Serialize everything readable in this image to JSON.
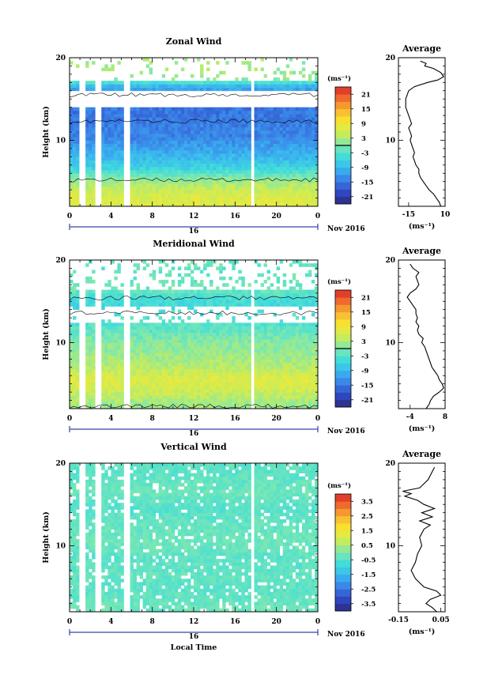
{
  "figure": {
    "x_axis_label": "Local Time",
    "date_label": "Nov 2016",
    "day_label": "16",
    "average_unit": "(ms⁻¹)",
    "colorbar_unit": "(ms⁻¹)"
  },
  "chart_data": [
    {
      "type": "heatmap",
      "title": "Zonal Wind",
      "ylabel": "Height (km)",
      "xlabel": "Local Time",
      "x_ticks": [
        "0",
        "4",
        "8",
        "12",
        "16",
        "20",
        "0"
      ],
      "x_range_hours": [
        0,
        24
      ],
      "y_ticks": [
        "20",
        "10"
      ],
      "ylim": [
        2,
        20
      ],
      "colorbar": {
        "unit": "(ms⁻¹)",
        "ticks": [
          "21",
          "15",
          "9",
          "3",
          "-3",
          "-9",
          "-15",
          "-21"
        ],
        "range": [
          -24,
          24
        ],
        "zero_marker": 0
      },
      "data_gaps_hours": [
        [
          1.0,
          1.6
        ],
        [
          2.4,
          3.2
        ],
        [
          5.2,
          5.8
        ],
        [
          17.5,
          17.9
        ]
      ],
      "profile_rows": [
        {
          "h": 2.5,
          "v": 7
        },
        {
          "h": 3.5,
          "v": 6
        },
        {
          "h": 4.5,
          "v": 4
        },
        {
          "h": 5.5,
          "v": 0
        },
        {
          "h": 6.5,
          "v": -5
        },
        {
          "h": 7.5,
          "v": -8
        },
        {
          "h": 8.5,
          "v": -10
        },
        {
          "h": 9.5,
          "v": -12
        },
        {
          "h": 10.5,
          "v": -14
        },
        {
          "h": 11.5,
          "v": -14
        },
        {
          "h": 12.5,
          "v": -15
        },
        {
          "h": 14.5,
          "v": -15
        },
        {
          "h": 15.5,
          "v": -13
        },
        {
          "h": 16.5,
          "v": -10
        },
        {
          "h": 17.5,
          "v": 2
        }
      ],
      "average": {
        "title": "Average",
        "unit": "(ms⁻¹)",
        "x_ticks": [
          "-15",
          "10"
        ],
        "xlim": [
          -22,
          10
        ],
        "y_ticks": [
          "20",
          "10"
        ],
        "ylim": [
          2,
          20
        ],
        "profile": [
          {
            "h": 2.0,
            "v": 7
          },
          {
            "h": 2.5,
            "v": 6
          },
          {
            "h": 3.0,
            "v": 4
          },
          {
            "h": 3.5,
            "v": 2
          },
          {
            "h": 4.0,
            "v": -1
          },
          {
            "h": 4.5,
            "v": -3
          },
          {
            "h": 5.0,
            "v": -5
          },
          {
            "h": 5.5,
            "v": -7
          },
          {
            "h": 6.0,
            "v": -8
          },
          {
            "h": 6.5,
            "v": -8
          },
          {
            "h": 7.0,
            "v": -10
          },
          {
            "h": 7.5,
            "v": -11
          },
          {
            "h": 8.0,
            "v": -12
          },
          {
            "h": 8.5,
            "v": -11
          },
          {
            "h": 9.0,
            "v": -12
          },
          {
            "h": 9.5,
            "v": -13
          },
          {
            "h": 10.0,
            "v": -14
          },
          {
            "h": 10.5,
            "v": -13
          },
          {
            "h": 11.0,
            "v": -14
          },
          {
            "h": 11.5,
            "v": -15
          },
          {
            "h": 12.0,
            "v": -13
          },
          {
            "h": 12.5,
            "v": -14
          },
          {
            "h": 13.0,
            "v": -15
          },
          {
            "h": 14.0,
            "v": -17
          },
          {
            "h": 15.0,
            "v": -17
          },
          {
            "h": 16.0,
            "v": -15
          },
          {
            "h": 16.5,
            "v": -11
          },
          {
            "h": 17.0,
            "v": -2
          },
          {
            "h": 17.3,
            "v": 5
          },
          {
            "h": 17.7,
            "v": 9
          },
          {
            "h": 18.2,
            "v": 7
          },
          {
            "h": 18.7,
            "v": 2
          },
          {
            "h": 19.0,
            "v": -4
          },
          {
            "h": 19.3,
            "v": -3
          },
          {
            "h": 19.6,
            "v": -7
          }
        ]
      }
    },
    {
      "type": "heatmap",
      "title": "Meridional Wind",
      "ylabel": "Height (km)",
      "xlabel": "Local Time",
      "x_ticks": [
        "0",
        "4",
        "8",
        "12",
        "16",
        "20",
        "0"
      ],
      "x_range_hours": [
        0,
        24
      ],
      "y_ticks": [
        "20",
        "10"
      ],
      "ylim": [
        2,
        20
      ],
      "colorbar": {
        "unit": "(ms⁻¹)",
        "ticks": [
          "21",
          "15",
          "9",
          "3",
          "-3",
          "-9",
          "-15",
          "-21"
        ],
        "range": [
          -24,
          24
        ],
        "zero_marker": 0
      },
      "data_gaps_hours": [
        [
          1.0,
          1.6
        ],
        [
          2.4,
          3.2
        ],
        [
          5.2,
          5.8
        ],
        [
          17.5,
          17.9
        ]
      ],
      "profile_rows": [
        {
          "h": 2.5,
          "v": 2
        },
        {
          "h": 3.5,
          "v": 4
        },
        {
          "h": 4.5,
          "v": 6
        },
        {
          "h": 5.5,
          "v": 7
        },
        {
          "h": 6.5,
          "v": 5
        },
        {
          "h": 7.5,
          "v": 3
        },
        {
          "h": 8.5,
          "v": 2
        },
        {
          "h": 9.5,
          "v": 1
        },
        {
          "h": 10.5,
          "v": 0
        },
        {
          "h": 11.5,
          "v": -2
        },
        {
          "h": 14.5,
          "v": -5
        },
        {
          "h": 15.5,
          "v": -4
        },
        {
          "h": 16.5,
          "v": -1
        },
        {
          "h": 18.5,
          "v": -2
        }
      ],
      "average": {
        "title": "Average",
        "unit": "(ms⁻¹)",
        "x_ticks": [
          "-4",
          "8"
        ],
        "xlim": [
          -8,
          8
        ],
        "y_ticks": [
          "20",
          "10"
        ],
        "ylim": [
          2,
          20
        ],
        "profile": [
          {
            "h": 2.0,
            "v": 1.5
          },
          {
            "h": 2.5,
            "v": 2.5
          },
          {
            "h": 3.0,
            "v": 3
          },
          {
            "h": 3.5,
            "v": 4
          },
          {
            "h": 4.0,
            "v": 6
          },
          {
            "h": 4.5,
            "v": 7.5
          },
          {
            "h": 5.0,
            "v": 7
          },
          {
            "h": 5.5,
            "v": 6
          },
          {
            "h": 6.0,
            "v": 5.5
          },
          {
            "h": 6.5,
            "v": 4.5
          },
          {
            "h": 7.0,
            "v": 3.5
          },
          {
            "h": 7.5,
            "v": 3
          },
          {
            "h": 8.0,
            "v": 2.5
          },
          {
            "h": 8.5,
            "v": 2
          },
          {
            "h": 9.0,
            "v": 1.5
          },
          {
            "h": 9.5,
            "v": 1
          },
          {
            "h": 10.0,
            "v": 0
          },
          {
            "h": 10.5,
            "v": 0.5
          },
          {
            "h": 11.0,
            "v": -1
          },
          {
            "h": 11.5,
            "v": -1.5
          },
          {
            "h": 12.0,
            "v": -1
          },
          {
            "h": 12.5,
            "v": -2
          },
          {
            "h": 13.0,
            "v": -1.5
          },
          {
            "h": 13.5,
            "v": -2
          },
          {
            "h": 14.0,
            "v": -2
          },
          {
            "h": 14.5,
            "v": -3
          },
          {
            "h": 15.0,
            "v": -4
          },
          {
            "h": 15.5,
            "v": -5
          },
          {
            "h": 16.0,
            "v": -4
          },
          {
            "h": 16.5,
            "v": -2
          },
          {
            "h": 17.0,
            "v": -1
          },
          {
            "h": 17.5,
            "v": -1.5
          },
          {
            "h": 18.0,
            "v": -2
          },
          {
            "h": 18.5,
            "v": -1
          },
          {
            "h": 19.0,
            "v": -3
          },
          {
            "h": 19.5,
            "v": -4
          }
        ]
      }
    },
    {
      "type": "heatmap",
      "title": "Vertical Wind",
      "ylabel": "Height (km)",
      "xlabel": "Local Time",
      "x_ticks": [
        "0",
        "4",
        "8",
        "12",
        "16",
        "20",
        "0"
      ],
      "x_range_hours": [
        0,
        24
      ],
      "y_ticks": [
        "20",
        "10"
      ],
      "ylim": [
        2,
        20
      ],
      "colorbar": {
        "unit": "(ms⁻¹)",
        "ticks": [
          "3.5",
          "2.5",
          "1.5",
          "0.5",
          "-0.5",
          "-1.5",
          "-2.5",
          "-3.5"
        ],
        "range": [
          -4,
          4
        ],
        "zero_marker": null
      },
      "data_gaps_hours": [
        [
          1.0,
          1.6
        ],
        [
          2.4,
          3.2
        ],
        [
          5.2,
          5.8
        ],
        [
          17.5,
          17.9
        ]
      ],
      "profile_rows": [
        {
          "h": 2.5,
          "v": -0.2
        },
        {
          "h": 4.5,
          "v": -0.4
        },
        {
          "h": 6.5,
          "v": -0.3
        },
        {
          "h": 8.5,
          "v": -0.4
        },
        {
          "h": 10.5,
          "v": -0.2
        },
        {
          "h": 12.5,
          "v": -0.3
        },
        {
          "h": 14.5,
          "v": -0.5
        },
        {
          "h": 16.5,
          "v": -0.2
        },
        {
          "h": 18.5,
          "v": -0.4
        }
      ],
      "average": {
        "title": "Average",
        "unit": "(ms⁻¹)",
        "x_ticks": [
          "-0.15",
          "0.05"
        ],
        "xlim": [
          -0.15,
          0.07
        ],
        "y_ticks": [
          "20",
          "10"
        ],
        "ylim": [
          2,
          20
        ],
        "profile": [
          {
            "h": 2.0,
            "v": 0.03
          },
          {
            "h": 2.5,
            "v": 0.01
          },
          {
            "h": 3.0,
            "v": -0.02
          },
          {
            "h": 3.5,
            "v": 0.0
          },
          {
            "h": 4.0,
            "v": 0.05
          },
          {
            "h": 4.5,
            "v": 0.03
          },
          {
            "h": 5.0,
            "v": -0.03
          },
          {
            "h": 5.5,
            "v": -0.05
          },
          {
            "h": 6.0,
            "v": -0.07
          },
          {
            "h": 6.5,
            "v": -0.08
          },
          {
            "h": 7.0,
            "v": -0.09
          },
          {
            "h": 8.0,
            "v": -0.07
          },
          {
            "h": 9.0,
            "v": -0.06
          },
          {
            "h": 10.0,
            "v": -0.04
          },
          {
            "h": 11.0,
            "v": -0.05
          },
          {
            "h": 12.0,
            "v": -0.03
          },
          {
            "h": 12.5,
            "v": 0.0
          },
          {
            "h": 13.0,
            "v": -0.05
          },
          {
            "h": 13.5,
            "v": 0.01
          },
          {
            "h": 14.0,
            "v": -0.04
          },
          {
            "h": 14.5,
            "v": 0.02
          },
          {
            "h": 15.0,
            "v": -0.03
          },
          {
            "h": 15.5,
            "v": -0.06
          },
          {
            "h": 16.0,
            "v": -0.12
          },
          {
            "h": 16.3,
            "v": -0.09
          },
          {
            "h": 16.6,
            "v": -0.13
          },
          {
            "h": 17.0,
            "v": -0.05
          },
          {
            "h": 18.0,
            "v": -0.01
          },
          {
            "h": 19.0,
            "v": 0.01
          },
          {
            "h": 19.5,
            "v": 0.02
          }
        ]
      }
    }
  ]
}
